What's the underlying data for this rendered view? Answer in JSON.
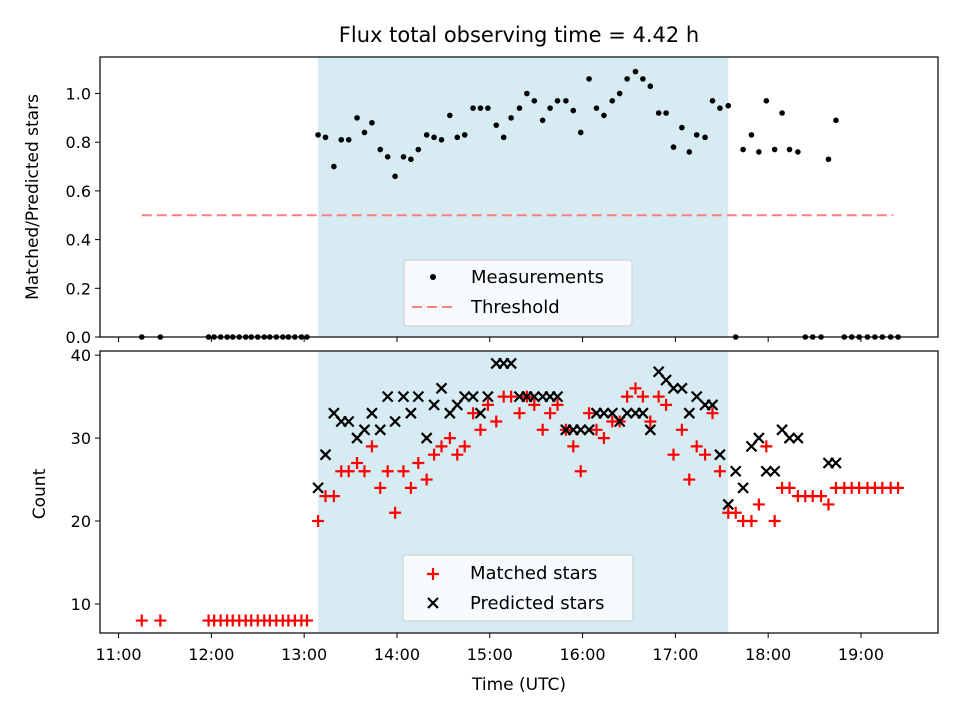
{
  "chart_data": [
    {
      "type": "scatter",
      "title": "Flux total observing time = 4.42 h",
      "xlabel": "",
      "ylabel": "Matched/Predicted stars",
      "x_unit": "hours (UTC)",
      "xlim": [
        10.8,
        19.83
      ],
      "ylim": [
        0,
        1.15
      ],
      "yticks": [
        "0.0",
        "0.2",
        "0.4",
        "0.6",
        "0.8",
        "1.0"
      ],
      "shaded_span": {
        "x0": 13.15,
        "x1": 17.57,
        "color": "#add8e6"
      },
      "threshold": {
        "name": "Threshold",
        "y": 0.5,
        "x0": 11.25,
        "x1": 19.35,
        "color": "#ff7f7f",
        "style": "dashed"
      },
      "legend": {
        "placement": "lower center",
        "entries": [
          "Measurements",
          "Threshold"
        ]
      },
      "series": [
        {
          "name": "Measurements",
          "color": "#000000",
          "marker": "dot",
          "x": [
            11.25,
            11.45,
            11.97,
            12.03,
            12.1,
            12.17,
            12.23,
            12.3,
            12.37,
            12.43,
            12.5,
            12.57,
            12.63,
            12.7,
            12.77,
            12.83,
            12.9,
            12.97,
            13.03,
            13.15,
            13.23,
            13.32,
            13.4,
            13.48,
            13.57,
            13.65,
            13.73,
            13.82,
            13.9,
            13.98,
            14.07,
            14.15,
            14.23,
            14.32,
            14.4,
            14.48,
            14.57,
            14.65,
            14.73,
            14.82,
            14.9,
            14.98,
            15.07,
            15.15,
            15.23,
            15.32,
            15.4,
            15.48,
            15.57,
            15.65,
            15.73,
            15.82,
            15.9,
            15.98,
            16.07,
            16.15,
            16.23,
            16.32,
            16.4,
            16.48,
            16.57,
            16.65,
            16.73,
            16.82,
            16.9,
            16.98,
            17.07,
            17.15,
            17.23,
            17.32,
            17.4,
            17.48,
            17.57,
            17.65,
            17.73,
            17.82,
            17.9,
            17.98,
            18.07,
            18.15,
            18.23,
            18.32,
            18.4,
            18.48,
            18.57,
            18.65,
            18.73,
            18.82,
            18.9,
            18.98,
            19.07,
            19.15,
            19.23,
            19.32,
            19.4
          ],
          "y": [
            0,
            0,
            0,
            0,
            0,
            0,
            0,
            0,
            0,
            0,
            0,
            0,
            0,
            0,
            0,
            0,
            0,
            0,
            0,
            0.83,
            0.82,
            0.7,
            0.81,
            0.81,
            0.9,
            0.84,
            0.88,
            0.77,
            0.74,
            0.66,
            0.74,
            0.73,
            0.77,
            0.83,
            0.82,
            0.81,
            0.91,
            0.82,
            0.83,
            0.94,
            0.94,
            0.94,
            0.87,
            0.82,
            0.9,
            0.94,
            1.0,
            0.97,
            0.89,
            0.94,
            0.97,
            0.97,
            0.93,
            0.84,
            1.06,
            0.94,
            0.91,
            0.97,
            1.0,
            1.06,
            1.09,
            1.06,
            1.03,
            0.92,
            0.92,
            0.78,
            0.86,
            0.76,
            0.83,
            0.82,
            0.97,
            0.94,
            0.95,
            0,
            0.77,
            0.83,
            0.76,
            0.97,
            0.77,
            0.92,
            0.77,
            0.76,
            0,
            0,
            0,
            0.73,
            0.89,
            0,
            0,
            0,
            0,
            0,
            0,
            0,
            0
          ]
        }
      ]
    },
    {
      "type": "scatter",
      "title": "",
      "xlabel": "Time (UTC)",
      "ylabel": "Count",
      "x_unit": "hours (UTC)",
      "xlim": [
        10.8,
        19.83
      ],
      "ylim": [
        6.5,
        40.5
      ],
      "yticks": [
        "10",
        "20",
        "30",
        "40"
      ],
      "xticks": [
        "11:00",
        "12:00",
        "13:00",
        "14:00",
        "15:00",
        "16:00",
        "17:00",
        "18:00",
        "19:00"
      ],
      "shaded_span": {
        "x0": 13.15,
        "x1": 17.57,
        "color": "#add8e6"
      },
      "legend": {
        "placement": "lower center",
        "entries": [
          "Matched stars",
          "Predicted stars"
        ]
      },
      "series": [
        {
          "name": "Matched stars",
          "color": "#ff0000",
          "marker": "plus",
          "x": [
            11.25,
            11.45,
            11.97,
            12.03,
            12.1,
            12.17,
            12.23,
            12.3,
            12.37,
            12.43,
            12.5,
            12.57,
            12.63,
            12.7,
            12.77,
            12.83,
            12.9,
            12.97,
            13.03,
            13.15,
            13.23,
            13.32,
            13.4,
            13.48,
            13.57,
            13.65,
            13.73,
            13.82,
            13.9,
            13.98,
            14.07,
            14.15,
            14.23,
            14.32,
            14.4,
            14.48,
            14.57,
            14.65,
            14.73,
            14.82,
            14.9,
            14.98,
            15.07,
            15.15,
            15.23,
            15.32,
            15.4,
            15.48,
            15.57,
            15.65,
            15.73,
            15.82,
            15.9,
            15.98,
            16.07,
            16.15,
            16.23,
            16.32,
            16.4,
            16.48,
            16.57,
            16.65,
            16.73,
            16.82,
            16.9,
            16.98,
            17.07,
            17.15,
            17.23,
            17.32,
            17.4,
            17.48,
            17.57,
            17.65,
            17.73,
            17.82,
            17.9,
            17.98,
            18.07,
            18.15,
            18.23,
            18.32,
            18.4,
            18.48,
            18.57,
            18.65,
            18.73,
            18.82,
            18.9,
            18.98,
            19.07,
            19.15,
            19.23,
            19.32,
            19.4
          ],
          "y": [
            8,
            8,
            8,
            8,
            8,
            8,
            8,
            8,
            8,
            8,
            8,
            8,
            8,
            8,
            8,
            8,
            8,
            8,
            8,
            20,
            23,
            23,
            26,
            26,
            27,
            26,
            29,
            24,
            26,
            21,
            26,
            24,
            27,
            25,
            28,
            29,
            30,
            28,
            29,
            33,
            31,
            34,
            32,
            35,
            35,
            33,
            35,
            34,
            31,
            33,
            34,
            31,
            29,
            26,
            33,
            31,
            30,
            32,
            32,
            35,
            36,
            35,
            32,
            35,
            34,
            28,
            31,
            25,
            29,
            28,
            33,
            26,
            21,
            21,
            20,
            20,
            22,
            29,
            20,
            24,
            24,
            23,
            23,
            23,
            23,
            22,
            24,
            24,
            24,
            24,
            24,
            24,
            24,
            24,
            24
          ]
        },
        {
          "name": "Predicted stars",
          "color": "#000000",
          "marker": "x",
          "x": [
            13.15,
            13.23,
            13.32,
            13.4,
            13.48,
            13.57,
            13.65,
            13.73,
            13.82,
            13.9,
            13.98,
            14.07,
            14.15,
            14.23,
            14.32,
            14.4,
            14.48,
            14.57,
            14.65,
            14.73,
            14.82,
            14.9,
            14.98,
            15.07,
            15.15,
            15.23,
            15.32,
            15.4,
            15.48,
            15.57,
            15.65,
            15.73,
            15.82,
            15.9,
            15.98,
            16.07,
            16.15,
            16.23,
            16.32,
            16.4,
            16.48,
            16.57,
            16.65,
            16.73,
            16.82,
            16.9,
            16.98,
            17.07,
            17.15,
            17.23,
            17.32,
            17.4,
            17.48,
            17.57,
            17.65,
            17.73,
            17.82,
            17.9,
            17.98,
            18.07,
            18.15,
            18.23,
            18.32,
            18.65,
            18.73
          ],
          "y": [
            24,
            28,
            33,
            32,
            32,
            30,
            31,
            33,
            31,
            35,
            32,
            35,
            33,
            35,
            30,
            34,
            36,
            33,
            34,
            35,
            35,
            33,
            35,
            39,
            39,
            39,
            35,
            35,
            35,
            35,
            35,
            35,
            31,
            31,
            31,
            31,
            33,
            33,
            33,
            32,
            33,
            33,
            33,
            31,
            38,
            37,
            36,
            36,
            33,
            35,
            34,
            34,
            28,
            22,
            26,
            24,
            29,
            30,
            26,
            26,
            31,
            30,
            30,
            27,
            27
          ]
        }
      ]
    }
  ]
}
